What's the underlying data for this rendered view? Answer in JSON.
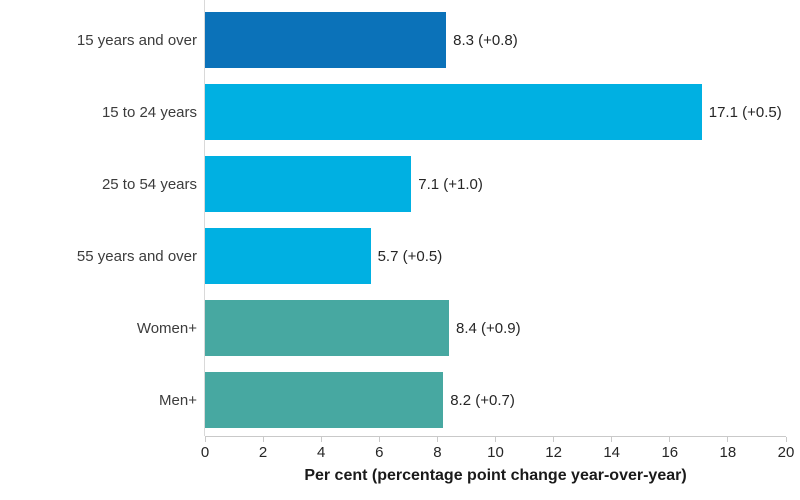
{
  "chart_data": {
    "type": "bar",
    "orientation": "horizontal",
    "categories": [
      "15 years and over",
      "15 to 24 years",
      "25 to 54 years",
      "55 years and over",
      "Women+",
      "Men+"
    ],
    "values": [
      8.3,
      17.1,
      7.1,
      5.7,
      8.4,
      8.2
    ],
    "value_labels": [
      "8.3 (+0.8)",
      "17.1 (+0.5)",
      "7.1 (+1.0)",
      "5.7 (+0.5)",
      "8.4 (+0.9)",
      "8.2 (+0.7)"
    ],
    "bar_colors": [
      "#0b72b9",
      "#00b0e2",
      "#00b0e2",
      "#00b0e2",
      "#47a8a1",
      "#47a8a1"
    ],
    "xlabel": "Per cent (percentage point change year-over-year)",
    "ylabel": "",
    "xlim": [
      0,
      20
    ],
    "x_ticks": [
      0,
      2,
      4,
      6,
      8,
      10,
      12,
      14,
      16,
      18,
      20
    ],
    "grid": false,
    "legend": false
  },
  "colors": {
    "dark_blue": "#0b72b9",
    "light_blue": "#00b0e2",
    "teal": "#47a8a1",
    "axis_line": "#c9c9c9",
    "baseline": "#d9d9d9",
    "text": "#262626"
  }
}
